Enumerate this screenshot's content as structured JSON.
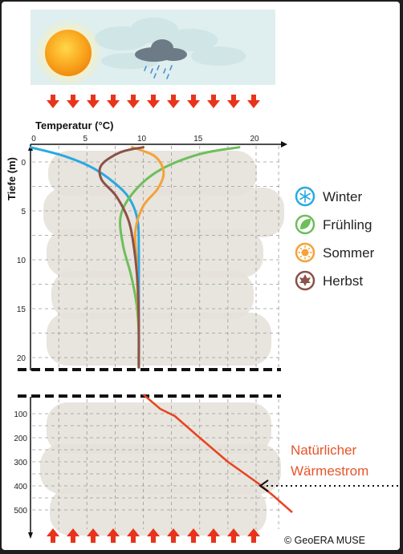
{
  "colors": {
    "winter": "#29a9e1",
    "fruehling": "#6cbf5a",
    "sommer": "#f4a23a",
    "herbst": "#8a5249",
    "geo": "#e8431f",
    "arrow": "#e8341c",
    "background_rock": "#e6e1da",
    "sky": "#dfeeee"
  },
  "chart_data": [
    {
      "type": "line",
      "xlabel": "Temperatur (°C)",
      "ylabel": "Tiefe (m)",
      "xlim": [
        0,
        22
      ],
      "ylim": [
        22,
        -2
      ],
      "x_ticks": [
        "0",
        "5",
        "10",
        "15",
        "20"
      ],
      "y_ticks": [
        "0",
        "5",
        "10",
        "15",
        "20"
      ],
      "x_axis_position": "top",
      "grid": true,
      "legend_position": "right",
      "series": [
        {
          "name": "Winter",
          "icon": "snowflake-icon",
          "x": [
            0,
            3,
            5.5,
            7.5,
            8.8,
            9.5,
            9.6,
            9.6,
            9.6,
            9.6
          ],
          "y": [
            -1.5,
            -0.6,
            0.6,
            2.2,
            3.8,
            6,
            9,
            13,
            17,
            21
          ]
        },
        {
          "name": "Frühling",
          "icon": "leaf-icon",
          "x": [
            18.5,
            15,
            11.5,
            9.2,
            8,
            8.2,
            8.9,
            9.4,
            9.6,
            9.6
          ],
          "y": [
            -1.5,
            -0.8,
            0.8,
            3,
            5.5,
            8.5,
            11.5,
            14.5,
            17.5,
            21
          ]
        },
        {
          "name": "Sommer",
          "icon": "sun-icon",
          "x": [
            9,
            11,
            11.8,
            11.3,
            10,
            9.3,
            9.4,
            9.5,
            9.6,
            9.6
          ],
          "y": [
            -1.5,
            -0.6,
            1,
            2.7,
            4.5,
            7,
            10,
            13.5,
            17,
            21
          ]
        },
        {
          "name": "Herbst",
          "icon": "maple-leaf-icon",
          "x": [
            10,
            8,
            6.3,
            6.3,
            7.6,
            8.7,
            9.2,
            9.5,
            9.6,
            9.6
          ],
          "y": [
            -1.5,
            -1,
            0.3,
            1.8,
            3.5,
            6,
            9,
            12.5,
            16.5,
            21
          ]
        }
      ]
    },
    {
      "type": "line",
      "ylim": [
        20,
        560
      ],
      "y_ticks": [
        "100",
        "200",
        "300",
        "400",
        "500"
      ],
      "grid": true,
      "series": [
        {
          "x": [
            10,
            11.5,
            12.8,
            15,
            17.5,
            20.2,
            21.5,
            23.2
          ],
          "y": [
            20,
            80,
            110,
            200,
            300,
            390,
            440,
            510
          ]
        }
      ]
    }
  ],
  "legend": [
    {
      "label": "Winter"
    },
    {
      "label": "Frühling"
    },
    {
      "label": "Sommer"
    },
    {
      "label": "Herbst"
    }
  ],
  "annotation": {
    "line1": "Natürlicher",
    "line2": "Wärmestrom"
  },
  "copyright": "© GeoERA MUSE"
}
